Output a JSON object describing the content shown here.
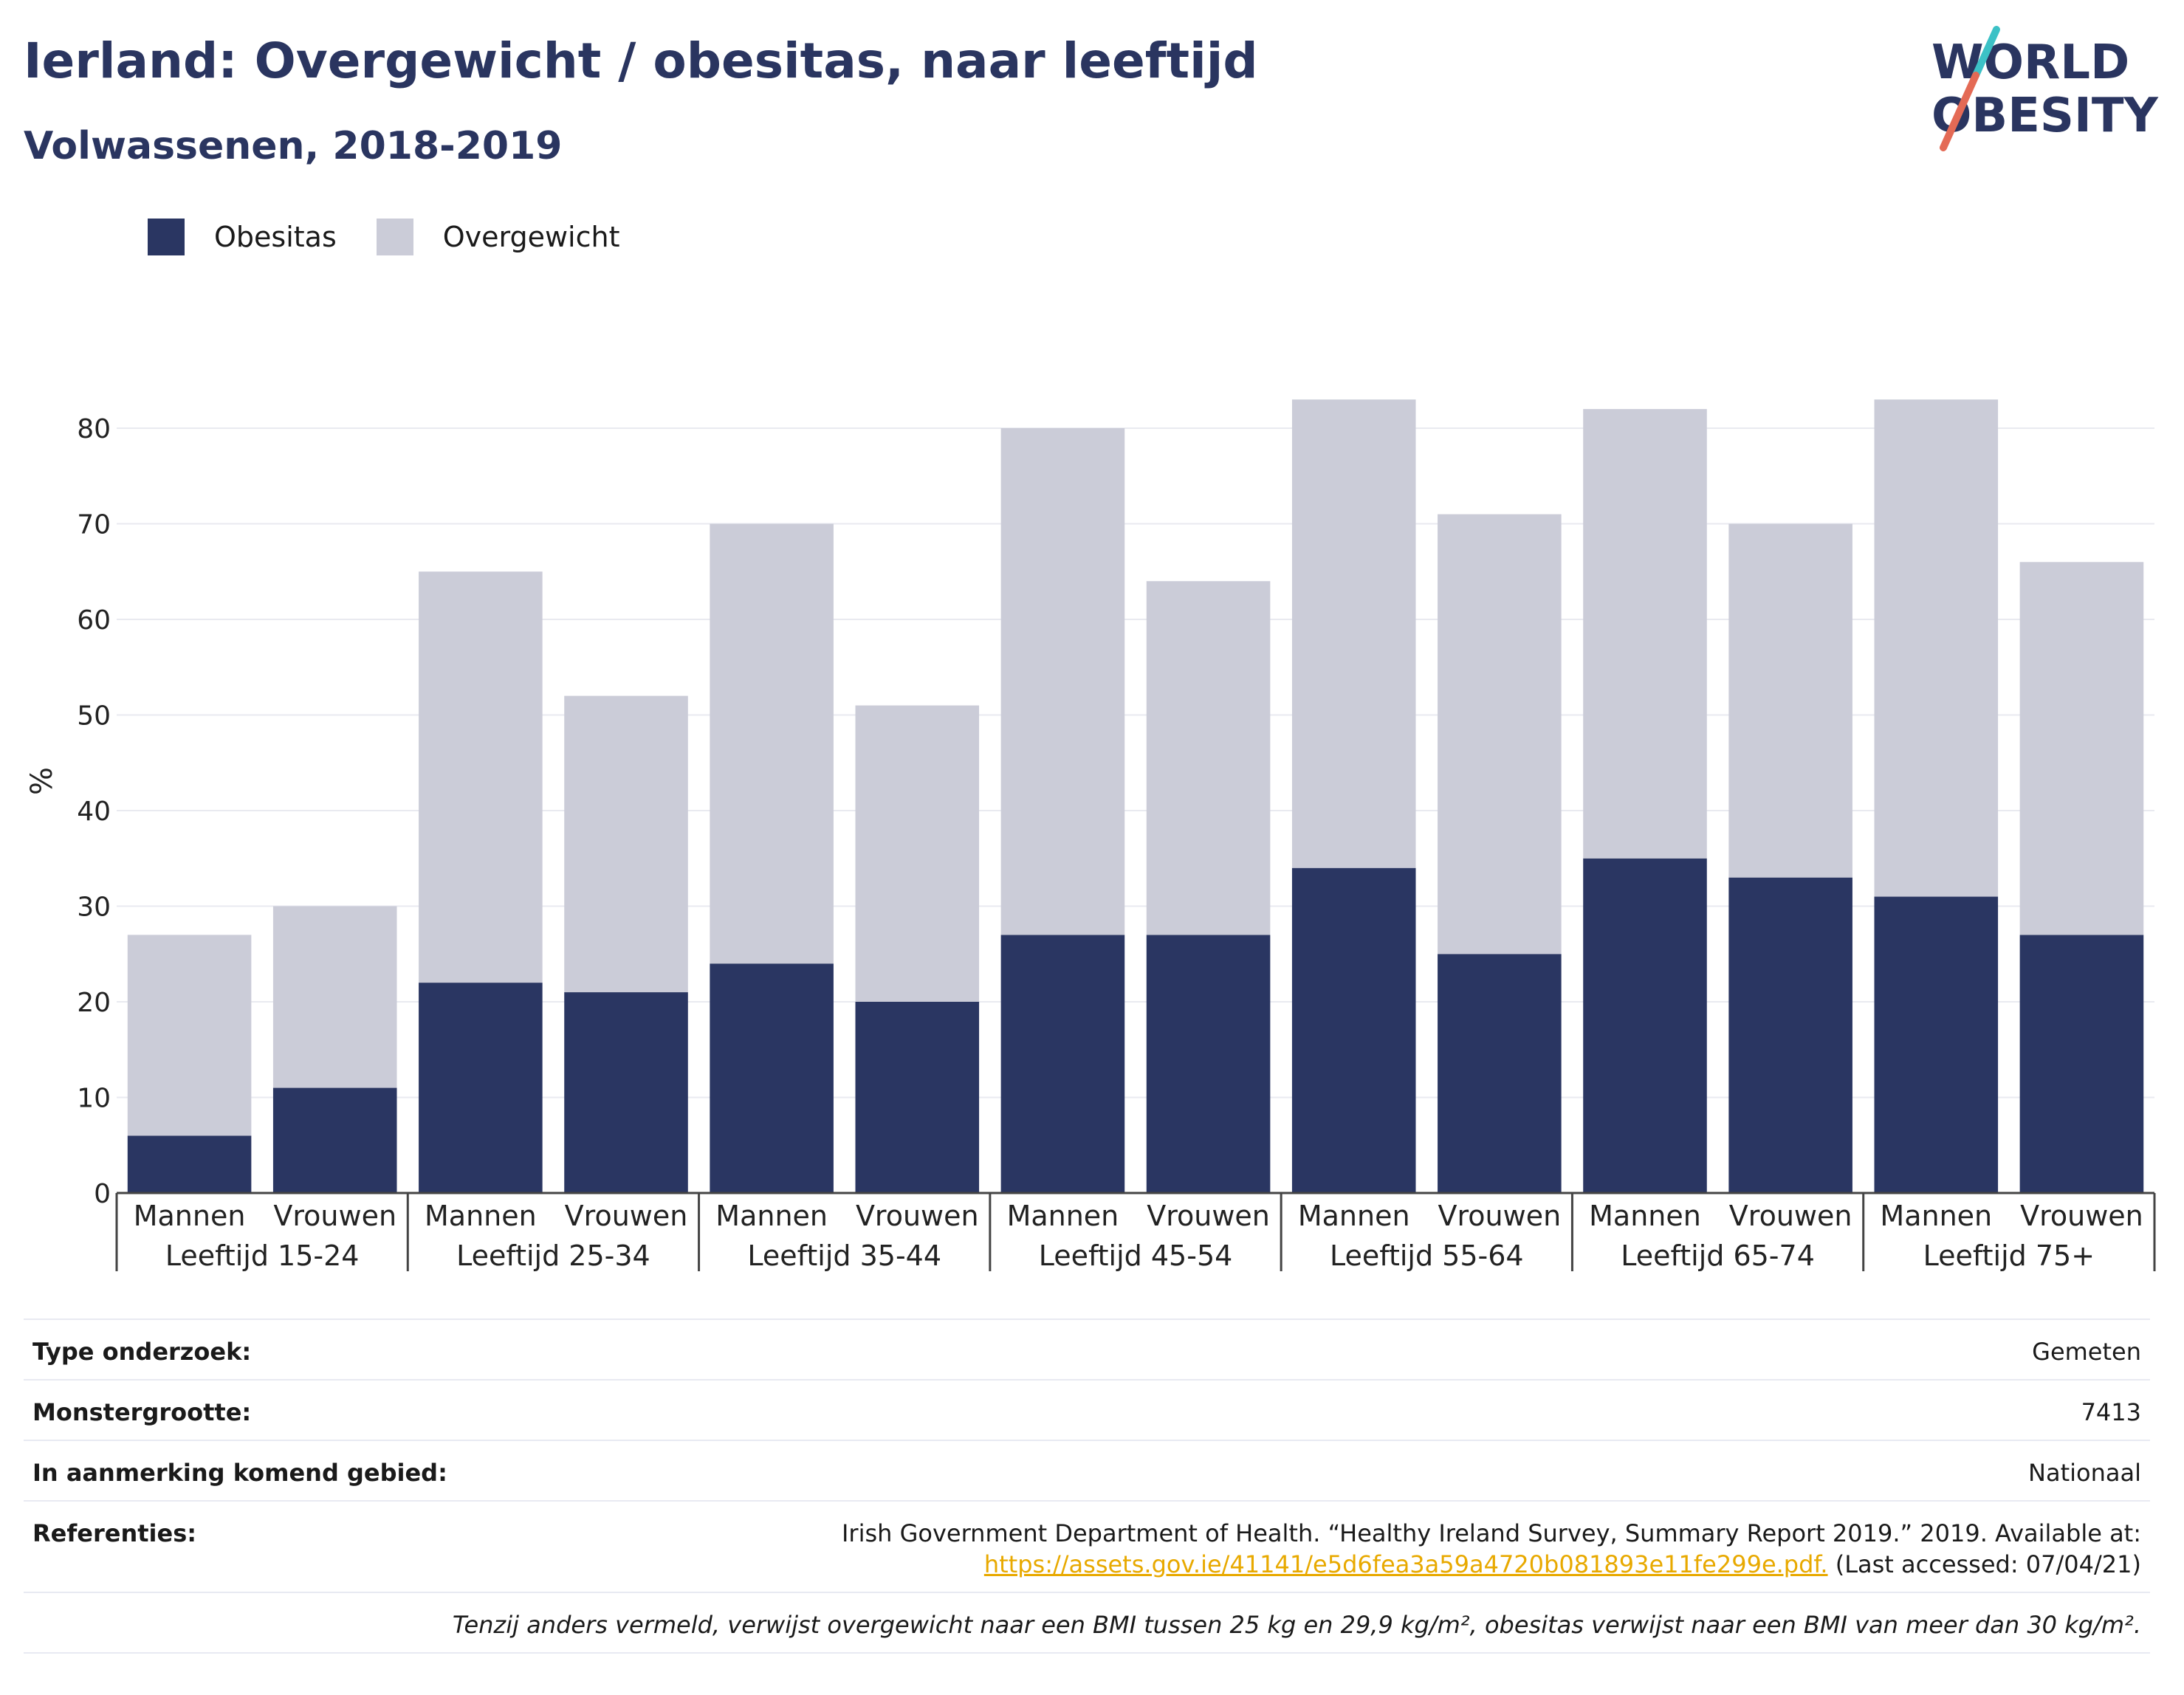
{
  "header": {
    "title": "Ierland: Overgewicht / obesitas, naar leeftijd",
    "subtitle": "Volwassenen, 2018-2019"
  },
  "logo": {
    "line1": "WORLD",
    "line2": "OBESITY"
  },
  "colors": {
    "obesitas": "#2a3662",
    "overgewicht": "#cbccd8",
    "accent_teal": "#3cc1c6",
    "accent_coral": "#e46a55",
    "brand": "#2a3560",
    "link": "#e8a900"
  },
  "chart_data": {
    "type": "bar",
    "stacked": true,
    "title": "Ierland: Overgewicht / obesitas, naar leeftijd",
    "subtitle": "Volwassenen, 2018-2019",
    "ylabel": "%",
    "xlabel": "",
    "ylim": [
      0,
      85
    ],
    "yticks": [
      0,
      10,
      20,
      30,
      40,
      50,
      60,
      70,
      80
    ],
    "grid": true,
    "legend_position": "top-left",
    "groups": [
      "Leeftijd 15-24",
      "Leeftijd 25-34",
      "Leeftijd 35-44",
      "Leeftijd 45-54",
      "Leeftijd 55-64",
      "Leeftijd 65-74",
      "Leeftijd 75+"
    ],
    "subcategories": [
      "Mannen",
      "Vrouwen"
    ],
    "categories": [
      "Mannen",
      "Vrouwen",
      "Mannen",
      "Vrouwen",
      "Mannen",
      "Vrouwen",
      "Mannen",
      "Vrouwen",
      "Mannen",
      "Vrouwen",
      "Mannen",
      "Vrouwen",
      "Mannen",
      "Vrouwen"
    ],
    "series": [
      {
        "name": "Obesitas",
        "values": [
          6,
          11,
          22,
          21,
          24,
          20,
          27,
          27,
          34,
          25,
          35,
          33,
          31,
          27
        ]
      },
      {
        "name": "Overgewicht",
        "values": [
          21,
          19,
          43,
          31,
          46,
          31,
          53,
          37,
          49,
          46,
          47,
          37,
          52,
          39
        ]
      }
    ]
  },
  "info": {
    "type_label": "Type onderzoek:",
    "type_value": "Gemeten",
    "sample_label": "Monstergrootte:",
    "sample_value": "7413",
    "area_label": "In aanmerking komend gebied:",
    "area_value": "Nationaal",
    "ref_label": "Referenties:",
    "ref_text": "Irish Government Department of Health. “Healthy Ireland Survey, Summary Report 2019.” 2019. Available at:",
    "ref_link": "https://assets.gov.ie/41141/e5d6fea3a59a4720b081893e11fe299e.pdf.",
    "ref_accessed": " (Last accessed: 07/04/21)",
    "footnote": "Tenzij anders vermeld, verwijst overgewicht naar een BMI tussen 25 kg en 29,9 kg/m², obesitas verwijst naar een BMI van meer dan 30 kg/m²."
  }
}
